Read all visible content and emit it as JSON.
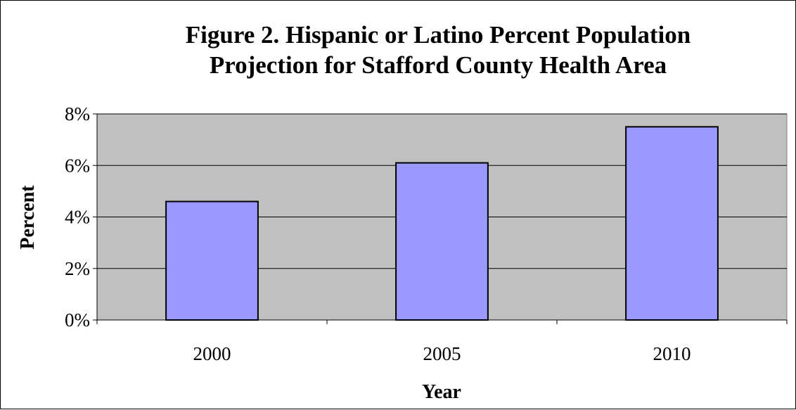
{
  "chart_data": {
    "type": "bar",
    "title_line1": "Figure 2. Hispanic or Latino Percent Population",
    "title_line2": "Projection for Stafford County Health Area",
    "xlabel": "Year",
    "ylabel": "Percent",
    "categories": [
      "2000",
      "2005",
      "2010"
    ],
    "values": [
      4.6,
      6.1,
      7.5
    ],
    "value_unit": "%",
    "ylim": [
      0,
      8
    ],
    "yticks": [
      0,
      2,
      4,
      6,
      8
    ],
    "ytick_labels": [
      "0%",
      "2%",
      "4%",
      "6%",
      "8%"
    ],
    "grid": true,
    "legend": "none",
    "colors": {
      "bar_fill": "#9999FF",
      "plot_background": "#C0C0C0",
      "bar_stroke": "#000000"
    }
  }
}
